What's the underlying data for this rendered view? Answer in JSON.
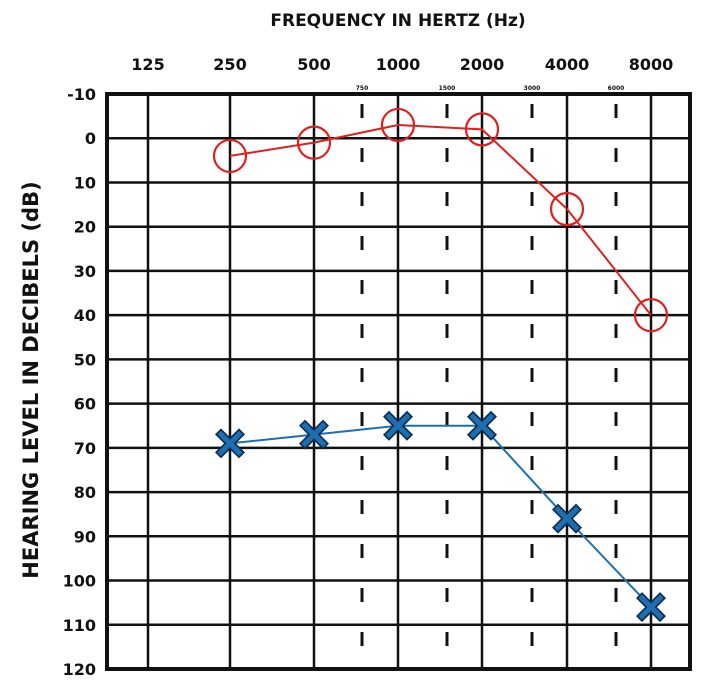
{
  "chart_data": {
    "type": "line",
    "title": "FREQUENCY IN HERTZ (Hz)",
    "xlabel": "",
    "ylabel": "HEARING LEVEL IN DECIBELS (dB)",
    "x_ticks": [
      "125",
      "250",
      "500",
      "1000",
      "2000",
      "4000",
      "8000"
    ],
    "x_mid_ticks": [
      "750",
      "1500",
      "3000",
      "6000"
    ],
    "y_ticks": [
      "-10",
      "0",
      "10",
      "20",
      "30",
      "40",
      "50",
      "60",
      "70",
      "80",
      "90",
      "100",
      "110",
      "120"
    ],
    "ylim": [
      -10,
      120
    ],
    "y_inverted": true,
    "grid": true,
    "legend": "none",
    "series": [
      {
        "marker": "circle",
        "color": "#e02020",
        "x": [
          "250",
          "500",
          "1000",
          "2000",
          "4000",
          "8000"
        ],
        "values": [
          4,
          1,
          -3,
          -2,
          16,
          40
        ]
      },
      {
        "marker": "cross",
        "color": "#1e6fb0",
        "x": [
          "250",
          "500",
          "1000",
          "2000",
          "4000",
          "8000"
        ],
        "values": [
          69,
          67,
          65,
          65,
          86,
          106
        ]
      }
    ]
  }
}
